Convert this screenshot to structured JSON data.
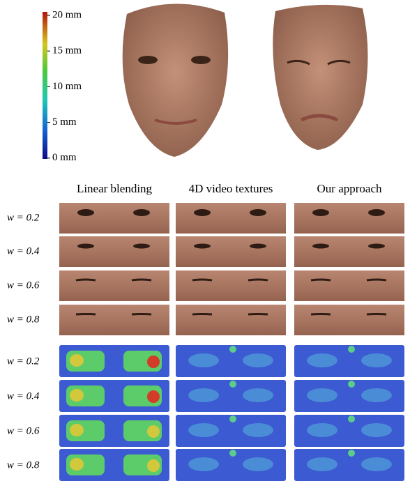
{
  "colorbar": {
    "labels": [
      "20 mm",
      "15 mm",
      "10 mm",
      "5 mm",
      "0 mm"
    ]
  },
  "columns": [
    "Linear blending",
    "4D video textures",
    "Our approach"
  ],
  "texture_rows": [
    "w = 0.2",
    "w = 0.4",
    "w = 0.6",
    "w = 0.8"
  ],
  "error_rows": [
    "w = 0.2",
    "w = 0.4",
    "w = 0.6",
    "w = 0.8"
  ]
}
